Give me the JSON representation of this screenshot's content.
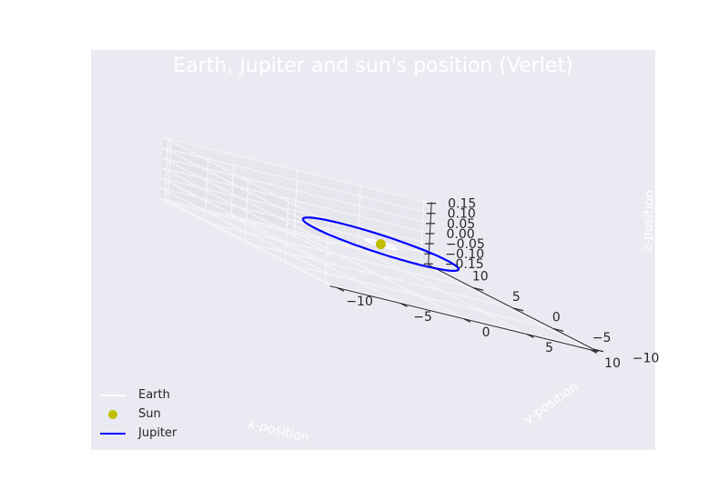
{
  "chart_data": {
    "type": "line",
    "projection": "3d",
    "title": "Earth, Jupiter and sun's position (Verlet)",
    "xlabel": "x-position",
    "ylabel": "y-position",
    "zlabel": "z-position",
    "xlim": [
      -10,
      10
    ],
    "ylim": [
      -10,
      10
    ],
    "zlim": [
      -0.15,
      0.15
    ],
    "xticks": [
      "−10",
      "−5",
      "0",
      "5",
      "10"
    ],
    "yticks": [
      "−10",
      "−5",
      "0",
      "5",
      "10"
    ],
    "zticks": [
      "0.15",
      "0.10",
      "0.05",
      "0.00",
      "−0.05",
      "−0.10",
      "−0.15"
    ],
    "legend_position": "lower-left",
    "grid": true,
    "background": "#eaeaf2",
    "series": [
      {
        "name": "Earth",
        "kind": "orbit",
        "radius": 1.0,
        "center": [
          0,
          0,
          0
        ],
        "color": "#ffffff"
      },
      {
        "name": "Sun",
        "kind": "point",
        "position": [
          0,
          0,
          0
        ],
        "color": "#bfbf00"
      },
      {
        "name": "Jupiter",
        "kind": "orbit",
        "radius": 5.2,
        "center": [
          0,
          0,
          0
        ],
        "color": "#0000ff"
      }
    ]
  }
}
